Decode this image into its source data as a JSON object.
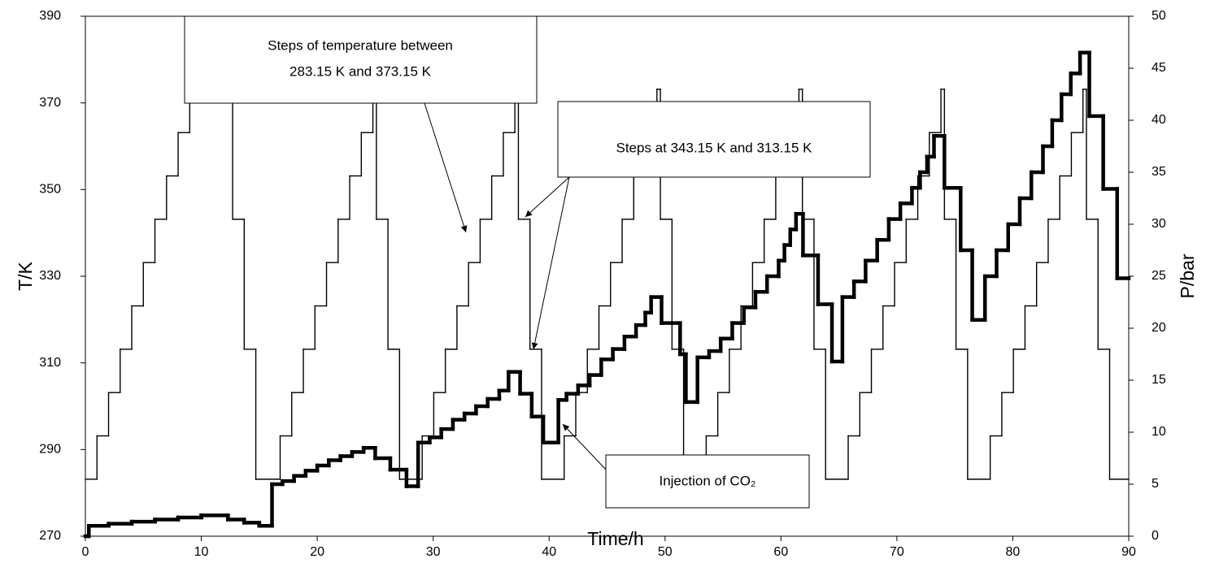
{
  "chart_data": {
    "type": "line",
    "x_label": "Time/h",
    "y_label": "T/K",
    "y2_label": "P/bar",
    "xlim": [
      0,
      90
    ],
    "xticks": [
      0,
      10,
      20,
      30,
      40,
      50,
      60,
      70,
      80,
      90
    ],
    "ylim": [
      270,
      390
    ],
    "yticks": [
      270,
      290,
      310,
      330,
      350,
      370,
      390
    ],
    "y2lim": [
      0,
      50
    ],
    "y2ticks": [
      0,
      5,
      10,
      15,
      20,
      25,
      30,
      35,
      40,
      45,
      50
    ],
    "step": "post",
    "series": [
      {
        "color": "#000000",
        "x": [
          0,
          1,
          2,
          3,
          4,
          5,
          6,
          7,
          8,
          9,
          12.7,
          13.7,
          14.7,
          16.8,
          17.8,
          18.8,
          19.8,
          20.8,
          21.8,
          22.8,
          23.8,
          24.8,
          25.1,
          26.1,
          27.1,
          29.05,
          30.05,
          31.05,
          32.05,
          33.05,
          34.05,
          35.05,
          36.05,
          37.05,
          37.35,
          38.35,
          39.35,
          41.3,
          42.3,
          43.3,
          44.3,
          45.3,
          46.3,
          47.3,
          48.3,
          49.3,
          49.6,
          50.6,
          51.6,
          53.55,
          54.55,
          55.55,
          56.55,
          57.55,
          58.55,
          59.55,
          60.55,
          61.55,
          61.85,
          62.85,
          63.85,
          65.8,
          66.8,
          67.8,
          68.8,
          69.8,
          70.8,
          71.8,
          72.8,
          73.8,
          74.1,
          75.1,
          76.1,
          78.05,
          79.05,
          80.05,
          81.05,
          82.05,
          83.05,
          84.05,
          85.05,
          86.05,
          86.35,
          87.35,
          88.35
        ],
        "values": [
          283.15,
          293.15,
          303.15,
          313.15,
          323.15,
          333.15,
          343.15,
          353.15,
          363.15,
          373.15,
          343.15,
          313.15,
          283.15,
          293.15,
          303.15,
          313.15,
          323.15,
          333.15,
          343.15,
          353.15,
          363.15,
          373.15,
          343.15,
          313.15,
          283.15,
          293.15,
          303.15,
          313.15,
          323.15,
          333.15,
          343.15,
          353.15,
          363.15,
          373.15,
          343.15,
          313.15,
          283.15,
          293.15,
          303.15,
          313.15,
          323.15,
          333.15,
          343.15,
          353.15,
          363.15,
          373.15,
          343.15,
          313.15,
          283.15,
          293.15,
          303.15,
          313.15,
          323.15,
          333.15,
          343.15,
          353.15,
          363.15,
          373.15,
          343.15,
          313.15,
          283.15,
          293.15,
          303.15,
          313.15,
          323.15,
          333.15,
          343.15,
          353.15,
          363.15,
          373.15,
          343.15,
          313.15,
          283.15,
          293.15,
          303.15,
          313.15,
          323.15,
          333.15,
          343.15,
          353.15,
          363.15,
          373.15,
          343.15,
          313.15,
          283.15
        ]
      },
      {
        "color": "#000000",
        "axis": "y2",
        "x": [
          0,
          0.3,
          2,
          4,
          6,
          8,
          10,
          12.3,
          13.7,
          15,
          16.1,
          17,
          18,
          19,
          20,
          21,
          22,
          23,
          24,
          25,
          26.3,
          27.7,
          28.7,
          29.7,
          30.7,
          31.7,
          32.7,
          33.7,
          34.7,
          35.7,
          36.5,
          37.5,
          38.5,
          39.5,
          40.8,
          41.5,
          42.5,
          43.5,
          44.5,
          45.5,
          46.5,
          47.5,
          48.3,
          48.8,
          49.7,
          51.3,
          51.8,
          52.8,
          53.8,
          54.8,
          55.8,
          56.8,
          57.8,
          58.8,
          59.8,
          60.3,
          60.8,
          61.3,
          61.9,
          63.2,
          64.4,
          65.3,
          66.3,
          67.3,
          68.3,
          69.3,
          70.3,
          71.3,
          72,
          72.6,
          73.2,
          74.1,
          75.5,
          76.5,
          77.6,
          78.6,
          79.6,
          80.6,
          81.6,
          82.6,
          83.4,
          84.2,
          85,
          85.8,
          86.6,
          87.8,
          89
        ],
        "values": [
          0,
          1.0,
          1.2,
          1.4,
          1.6,
          1.8,
          2.0,
          1.6,
          1.3,
          1.0,
          5.0,
          5.3,
          5.8,
          6.3,
          6.8,
          7.3,
          7.7,
          8.1,
          8.5,
          7.5,
          6.4,
          4.8,
          9.0,
          9.5,
          10.3,
          11.2,
          11.8,
          12.5,
          13.2,
          14.0,
          15.8,
          13.7,
          11.5,
          9.0,
          13.1,
          13.7,
          14.5,
          15.5,
          17.0,
          18.0,
          19.2,
          20.3,
          21.5,
          23.0,
          20.5,
          17.5,
          12.9,
          17.2,
          17.8,
          19.0,
          20.5,
          22.0,
          23.5,
          25.0,
          26.5,
          28.0,
          29.5,
          31.0,
          27.0,
          22.3,
          16.8,
          23.0,
          24.5,
          26.5,
          28.5,
          30.5,
          32.0,
          33.5,
          35.0,
          36.5,
          38.5,
          33.5,
          27.5,
          20.8,
          25.0,
          27.5,
          30.0,
          32.5,
          35.0,
          37.5,
          40.0,
          42.5,
          44.5,
          46.5,
          40.4,
          33.4,
          24.8
        ]
      }
    ],
    "annotations": [
      {
        "text": [
          "Steps of temperature between",
          "283.15 K and 373.15 K"
        ]
      },
      {
        "text": [
          "Steps at 343.15 K and 313.15 K"
        ]
      },
      {
        "text": [
          "Injection of CO₂"
        ]
      }
    ]
  }
}
